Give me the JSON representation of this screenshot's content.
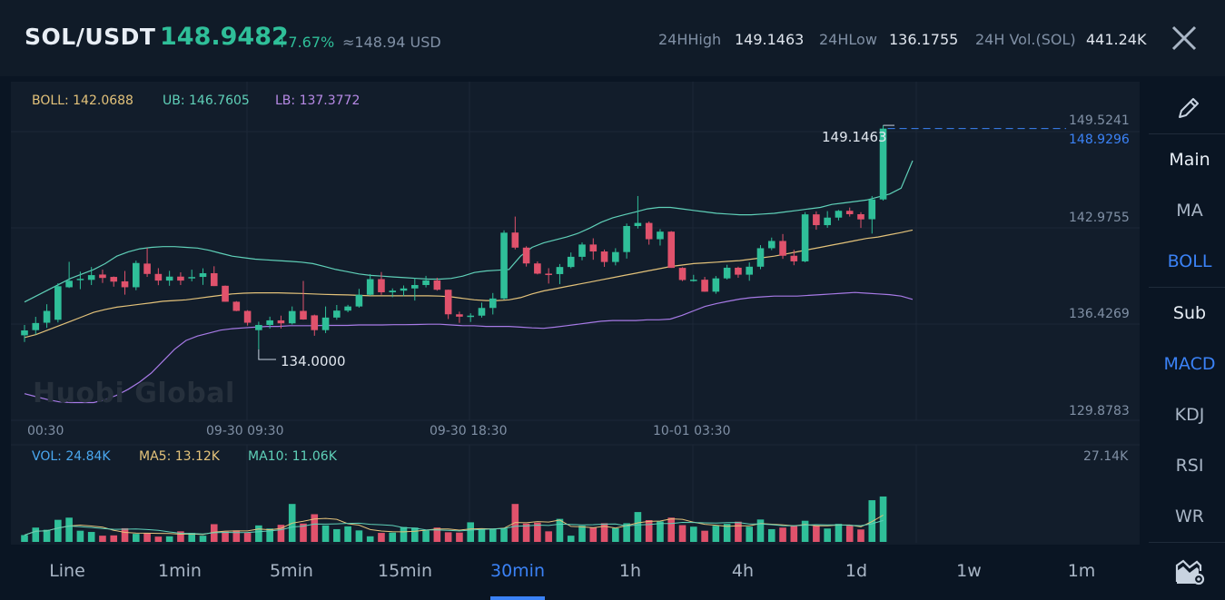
{
  "header": {
    "pair": "SOL/USDT",
    "price": "148.9482",
    "change": "+7.67%",
    "usd": "≈148.94 USD",
    "high_label": "24HHigh",
    "high_value": "149.1463",
    "low_label": "24HLow",
    "low_value": "136.1755",
    "vol_label": "24H Vol.(SOL)",
    "vol_value": "441.24K"
  },
  "indicators": {
    "boll": "BOLL: 142.0688",
    "ub": "UB: 146.7605",
    "lb": "LB: 137.3772"
  },
  "price_axis": [
    "149.5241",
    "142.9755",
    "136.4269",
    "129.8783"
  ],
  "current_price_tag": "148.9296",
  "max_label": "149.1463",
  "min_label": "134.0000",
  "time_axis": [
    "00:30",
    "09-30 09:30",
    "09-30 18:30",
    "10-01 03:30"
  ],
  "watermark": "Huobi Global",
  "volume": {
    "vol": "VOL: 24.84K",
    "ma5": "MA5: 13.12K",
    "ma10": "MA10: 11.06K",
    "max": "27.14K"
  },
  "right_panel": {
    "main": "Main",
    "ma": "MA",
    "boll": "BOLL",
    "sub": "Sub",
    "macd": "MACD",
    "kdj": "KDJ",
    "rsi": "RSI",
    "wr": "WR"
  },
  "timeframes": [
    "Line",
    "1min",
    "5min",
    "15min",
    "30min",
    "1h",
    "4h",
    "1d",
    "1w",
    "1m"
  ],
  "active_timeframe": "30min",
  "colors": {
    "up": "#2fbf99",
    "down": "#e0526c",
    "accent": "#3b82f6",
    "boll_mid": "#e3c27a",
    "boll_upper": "#5fd0b8",
    "boll_lower": "#a77ae6"
  },
  "candles": [
    {
      "o": 134.95,
      "h": 135.65,
      "l": 134.5,
      "c": 135.28
    },
    {
      "o": 135.3,
      "h": 136.2,
      "l": 135.0,
      "c": 135.78
    },
    {
      "o": 135.8,
      "h": 137.05,
      "l": 135.45,
      "c": 136.6
    },
    {
      "o": 136.0,
      "h": 138.47,
      "l": 135.82,
      "c": 138.27
    },
    {
      "o": 138.2,
      "h": 139.92,
      "l": 138.15,
      "c": 138.64
    },
    {
      "o": 138.68,
      "h": 139.26,
      "l": 138.07,
      "c": 138.77
    },
    {
      "o": 138.7,
      "h": 139.57,
      "l": 138.35,
      "c": 139.02
    },
    {
      "o": 139.06,
      "h": 139.39,
      "l": 138.49,
      "c": 138.83
    },
    {
      "o": 138.9,
      "h": 138.93,
      "l": 138.24,
      "c": 138.58
    },
    {
      "o": 138.6,
      "h": 139.3,
      "l": 137.7,
      "c": 138.2
    },
    {
      "o": 138.2,
      "h": 140.0,
      "l": 138.0,
      "c": 139.84
    },
    {
      "o": 139.8,
      "h": 140.86,
      "l": 138.9,
      "c": 139.1
    },
    {
      "o": 139.1,
      "h": 139.49,
      "l": 138.34,
      "c": 138.65
    },
    {
      "o": 138.65,
      "h": 139.31,
      "l": 138.3,
      "c": 138.92
    },
    {
      "o": 138.92,
      "h": 139.21,
      "l": 138.35,
      "c": 138.65
    },
    {
      "o": 138.8,
      "h": 139.39,
      "l": 138.6,
      "c": 138.89
    },
    {
      "o": 138.9,
      "h": 139.48,
      "l": 138.36,
      "c": 139.15
    },
    {
      "o": 139.15,
      "h": 139.62,
      "l": 138.28,
      "c": 138.28
    },
    {
      "o": 138.3,
      "h": 138.32,
      "l": 137.22,
      "c": 137.22
    },
    {
      "o": 137.22,
      "h": 137.26,
      "l": 136.58,
      "c": 136.6
    },
    {
      "o": 136.6,
      "h": 136.65,
      "l": 135.61,
      "c": 135.8
    },
    {
      "o": 135.3,
      "h": 135.87,
      "l": 134.0,
      "c": 135.65
    },
    {
      "o": 135.65,
      "h": 136.21,
      "l": 135.4,
      "c": 135.96
    },
    {
      "o": 135.96,
      "h": 136.28,
      "l": 135.41,
      "c": 135.76
    },
    {
      "o": 135.76,
      "h": 136.9,
      "l": 135.68,
      "c": 136.59
    },
    {
      "o": 136.6,
      "h": 138.63,
      "l": 136.0,
      "c": 136.02
    },
    {
      "o": 136.3,
      "h": 136.35,
      "l": 134.92,
      "c": 135.3
    },
    {
      "o": 135.3,
      "h": 136.9,
      "l": 135.1,
      "c": 136.15
    },
    {
      "o": 136.15,
      "h": 137.0,
      "l": 136.0,
      "c": 136.62
    },
    {
      "o": 136.62,
      "h": 137.01,
      "l": 136.51,
      "c": 136.9
    },
    {
      "o": 136.9,
      "h": 138.09,
      "l": 136.82,
      "c": 137.69
    },
    {
      "o": 137.69,
      "h": 139.09,
      "l": 137.62,
      "c": 138.75
    },
    {
      "o": 138.75,
      "h": 139.23,
      "l": 137.69,
      "c": 137.86
    },
    {
      "o": 137.86,
      "h": 138.12,
      "l": 137.53,
      "c": 137.97
    },
    {
      "o": 137.97,
      "h": 138.32,
      "l": 137.6,
      "c": 138.12
    },
    {
      "o": 138.12,
      "h": 138.82,
      "l": 137.3,
      "c": 138.35
    },
    {
      "o": 138.35,
      "h": 138.97,
      "l": 138.19,
      "c": 138.66
    },
    {
      "o": 138.66,
      "h": 138.84,
      "l": 137.97,
      "c": 138.03
    },
    {
      "o": 138.03,
      "h": 138.04,
      "l": 136.05,
      "c": 136.37
    },
    {
      "o": 136.37,
      "h": 136.55,
      "l": 135.79,
      "c": 136.21
    },
    {
      "o": 136.21,
      "h": 136.44,
      "l": 135.85,
      "c": 136.28
    },
    {
      "o": 136.28,
      "h": 137.16,
      "l": 136.15,
      "c": 136.8
    },
    {
      "o": 136.8,
      "h": 137.81,
      "l": 136.36,
      "c": 137.44
    },
    {
      "o": 137.44,
      "h": 142.05,
      "l": 137.36,
      "c": 141.89
    },
    {
      "o": 141.9,
      "h": 142.98,
      "l": 140.76,
      "c": 140.88
    },
    {
      "o": 140.88,
      "h": 140.97,
      "l": 139.6,
      "c": 139.81
    },
    {
      "o": 139.81,
      "h": 139.95,
      "l": 139.07,
      "c": 139.12
    },
    {
      "o": 139.12,
      "h": 139.49,
      "l": 138.45,
      "c": 139.09
    },
    {
      "o": 139.09,
      "h": 139.77,
      "l": 138.41,
      "c": 139.57
    },
    {
      "o": 139.57,
      "h": 140.55,
      "l": 139.48,
      "c": 140.26
    },
    {
      "o": 140.26,
      "h": 141.23,
      "l": 140.02,
      "c": 141.09
    },
    {
      "o": 141.09,
      "h": 141.51,
      "l": 140.06,
      "c": 140.62
    },
    {
      "o": 140.62,
      "h": 140.75,
      "l": 139.58,
      "c": 139.91
    },
    {
      "o": 139.91,
      "h": 140.84,
      "l": 139.68,
      "c": 140.58
    },
    {
      "o": 140.58,
      "h": 142.51,
      "l": 140.14,
      "c": 142.34
    },
    {
      "o": 142.34,
      "h": 144.37,
      "l": 142.17,
      "c": 142.55
    },
    {
      "o": 142.55,
      "h": 142.65,
      "l": 141.08,
      "c": 141.45
    },
    {
      "o": 141.45,
      "h": 142.13,
      "l": 141.02,
      "c": 141.96
    },
    {
      "o": 141.96,
      "h": 142.0,
      "l": 139.51,
      "c": 139.51
    },
    {
      "o": 139.51,
      "h": 139.55,
      "l": 138.62,
      "c": 138.69
    },
    {
      "o": 138.69,
      "h": 139.04,
      "l": 138.58,
      "c": 138.71
    },
    {
      "o": 138.71,
      "h": 138.9,
      "l": 137.89,
      "c": 137.9
    },
    {
      "o": 137.9,
      "h": 138.96,
      "l": 137.76,
      "c": 138.8
    },
    {
      "o": 138.8,
      "h": 139.72,
      "l": 138.72,
      "c": 139.52
    },
    {
      "o": 139.52,
      "h": 139.59,
      "l": 138.84,
      "c": 139.05
    },
    {
      "o": 139.05,
      "h": 139.88,
      "l": 138.64,
      "c": 139.59
    },
    {
      "o": 139.59,
      "h": 141.05,
      "l": 139.42,
      "c": 140.84
    },
    {
      "o": 140.84,
      "h": 141.56,
      "l": 140.71,
      "c": 141.33
    },
    {
      "o": 141.33,
      "h": 141.8,
      "l": 140.12,
      "c": 140.33
    },
    {
      "o": 140.33,
      "h": 140.73,
      "l": 139.69,
      "c": 139.95
    },
    {
      "o": 139.95,
      "h": 143.28,
      "l": 139.89,
      "c": 143.13
    },
    {
      "o": 143.13,
      "h": 143.33,
      "l": 142.09,
      "c": 142.4
    },
    {
      "o": 142.4,
      "h": 143.35,
      "l": 142.22,
      "c": 142.91
    },
    {
      "o": 142.91,
      "h": 143.43,
      "l": 142.72,
      "c": 143.37
    },
    {
      "o": 143.37,
      "h": 143.59,
      "l": 142.98,
      "c": 143.14
    },
    {
      "o": 143.14,
      "h": 143.28,
      "l": 142.21,
      "c": 142.79
    },
    {
      "o": 142.8,
      "h": 144.37,
      "l": 141.83,
      "c": 144.14
    },
    {
      "o": 144.14,
      "h": 149.15,
      "l": 144.06,
      "c": 148.93
    }
  ],
  "boll_mid": [
    134.8,
    135.0,
    135.3,
    135.6,
    135.9,
    136.2,
    136.5,
    136.7,
    136.85,
    136.95,
    137.05,
    137.15,
    137.25,
    137.3,
    137.35,
    137.45,
    137.55,
    137.65,
    137.75,
    137.8,
    137.82,
    137.82,
    137.82,
    137.8,
    137.78,
    137.75,
    137.72,
    137.7,
    137.68,
    137.65,
    137.62,
    137.62,
    137.62,
    137.62,
    137.62,
    137.62,
    137.6,
    137.55,
    137.45,
    137.35,
    137.3,
    137.3,
    137.35,
    137.5,
    137.75,
    137.95,
    138.1,
    138.25,
    138.4,
    138.55,
    138.7,
    138.85,
    139.0,
    139.15,
    139.3,
    139.45,
    139.6,
    139.7,
    139.8,
    139.85,
    139.9,
    139.95,
    140.0,
    140.1,
    140.2,
    140.3,
    140.45,
    140.6,
    140.75,
    140.9,
    141.05,
    141.2,
    141.35,
    141.5,
    141.6,
    141.75,
    141.9,
    142.07
  ],
  "boll_upper": [
    137.2,
    137.6,
    138.0,
    138.4,
    138.8,
    139.1,
    139.4,
    139.8,
    140.3,
    140.6,
    140.8,
    140.9,
    140.95,
    140.95,
    140.9,
    140.85,
    140.7,
    140.5,
    140.3,
    140.2,
    140.1,
    140.05,
    140.0,
    139.95,
    139.9,
    139.8,
    139.6,
    139.4,
    139.25,
    139.1,
    139.0,
    138.95,
    138.9,
    138.85,
    138.8,
    138.75,
    138.75,
    138.8,
    138.95,
    139.2,
    139.3,
    139.35,
    139.4,
    140.3,
    140.9,
    141.2,
    141.4,
    141.6,
    141.85,
    142.2,
    142.6,
    142.9,
    143.1,
    143.3,
    143.5,
    143.6,
    143.6,
    143.5,
    143.4,
    143.3,
    143.2,
    143.15,
    143.1,
    143.1,
    143.15,
    143.2,
    143.3,
    143.4,
    143.5,
    143.6,
    143.8,
    143.9,
    144.0,
    144.1,
    144.3,
    144.5,
    144.9,
    146.76
  ],
  "boll_lower": [
    131.0,
    130.8,
    130.6,
    130.45,
    130.4,
    130.4,
    130.4,
    130.6,
    130.9,
    131.3,
    131.8,
    132.4,
    133.2,
    134.0,
    134.6,
    134.9,
    135.1,
    135.3,
    135.4,
    135.45,
    135.5,
    135.55,
    135.55,
    135.6,
    135.6,
    135.6,
    135.62,
    135.62,
    135.62,
    135.65,
    135.65,
    135.65,
    135.67,
    135.67,
    135.68,
    135.7,
    135.7,
    135.65,
    135.6,
    135.6,
    135.55,
    135.55,
    135.55,
    135.5,
    135.45,
    135.42,
    135.5,
    135.6,
    135.7,
    135.8,
    135.9,
    135.95,
    135.95,
    135.95,
    136.0,
    136.0,
    136.05,
    136.3,
    136.6,
    136.9,
    137.1,
    137.25,
    137.4,
    137.5,
    137.55,
    137.6,
    137.6,
    137.6,
    137.65,
    137.7,
    137.75,
    137.8,
    137.85,
    137.8,
    137.75,
    137.7,
    137.6,
    137.38
  ],
  "volumes": [
    2.2,
    2.1,
    4.6,
    3.9,
    7.1,
    7.8,
    3.6,
    3.2,
    2.0,
    2.1,
    4.4,
    2.6,
    2.9,
    1.7,
    1.8,
    3.4,
    2.9,
    2.0,
    5.7,
    3.3,
    3.7,
    2.9,
    5.3,
    4.3,
    5.5,
    12.2,
    5.9,
    8.9,
    5.3,
    4.1,
    5.0,
    3.7,
    1.8,
    2.9,
    3.0,
    4.8,
    4.6,
    3.7,
    4.6,
    3.1,
    3.0,
    6.3,
    4.3,
    4.1,
    4.3,
    4.8,
    5.5,
    8.1,
    4.9,
    8.8,
    3.9,
    3.6,
    3.7,
    4.6,
    2.0,
    3.4,
    6.2,
    2.7,
    7.4,
    7.7,
    5.7,
    5.2,
    7.4,
    5.4,
    4.9,
    7.2,
    5.8,
    6.0,
    7.9,
    5.0,
    4.4,
    6.0,
    7.4,
    5.0,
    5.2,
    4.6,
    7.4,
    4.6,
    4.3,
    5.1,
    5.0,
    4.4,
    5.8,
    4.6,
    5.2,
    5.7,
    7.6,
    4.9,
    4.8,
    3.6,
    4.1,
    7.8,
    5.8,
    4.9,
    5.3,
    4.1,
    4.4,
    4.0,
    4.0,
    4.1,
    7.1,
    4.5,
    3.5,
    4.5,
    4.0,
    10.4,
    11.1,
    4.1,
    0.0,
    0.0,
    0.0,
    0.0,
    0.0,
    0.0,
    0.0,
    0.0,
    0.0,
    0.0,
    0.0,
    0.0
  ]
}
